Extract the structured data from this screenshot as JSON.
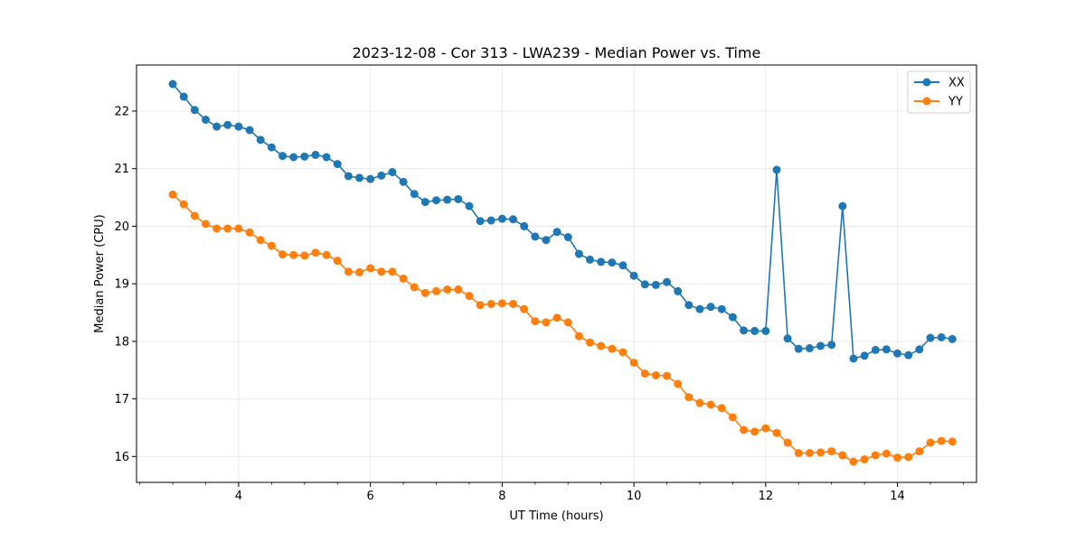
{
  "chart_data": {
    "type": "line",
    "title": "2023-12-08 - Cor 313 - LWA239 - Median Power vs. Time",
    "xlabel": "UT Time (hours)",
    "ylabel": "Median Power (CPU)",
    "xlim": [
      2.45,
      15.2
    ],
    "ylim": [
      15.55,
      22.8
    ],
    "xticks": [
      4,
      6,
      8,
      10,
      12,
      14
    ],
    "yticks": [
      16,
      17,
      18,
      19,
      20,
      21,
      22
    ],
    "grid": true,
    "legend_position": "upper right",
    "x": [
      3.0,
      3.167,
      3.333,
      3.5,
      3.667,
      3.833,
      4.0,
      4.167,
      4.333,
      4.5,
      4.667,
      4.833,
      5.0,
      5.167,
      5.333,
      5.5,
      5.667,
      5.833,
      6.0,
      6.167,
      6.333,
      6.5,
      6.667,
      6.833,
      7.0,
      7.167,
      7.333,
      7.5,
      7.667,
      7.833,
      8.0,
      8.167,
      8.333,
      8.5,
      8.667,
      8.833,
      9.0,
      9.167,
      9.333,
      9.5,
      9.667,
      9.833,
      10.0,
      10.167,
      10.333,
      10.5,
      10.667,
      10.833,
      11.0,
      11.167,
      11.333,
      11.5,
      11.667,
      11.833,
      12.0,
      12.167,
      12.333,
      12.5,
      12.667,
      12.833,
      13.0,
      13.167,
      13.333,
      13.5,
      13.667,
      13.833,
      14.0,
      14.167,
      14.333,
      14.5,
      14.667,
      14.833
    ],
    "series": [
      {
        "name": "XX",
        "color": "#1f77b4",
        "values": [
          22.47,
          22.25,
          22.02,
          21.85,
          21.73,
          21.76,
          21.73,
          21.67,
          21.5,
          21.37,
          21.22,
          21.2,
          21.21,
          21.24,
          21.2,
          21.08,
          20.87,
          20.84,
          20.82,
          20.88,
          20.94,
          20.77,
          20.56,
          20.42,
          20.45,
          20.46,
          20.47,
          20.35,
          20.09,
          20.1,
          20.13,
          20.12,
          20.0,
          19.82,
          19.76,
          19.9,
          19.81,
          19.52,
          19.42,
          19.38,
          19.37,
          19.32,
          19.14,
          18.99,
          18.98,
          19.03,
          18.87,
          18.63,
          18.56,
          18.6,
          18.56,
          18.42,
          18.19,
          18.18,
          18.18,
          20.98,
          18.05,
          17.87,
          17.88,
          17.92,
          17.94,
          20.35,
          17.7,
          17.75,
          17.85,
          17.86,
          17.79,
          17.76,
          17.86,
          18.06,
          18.07,
          18.04
        ]
      },
      {
        "name": "YY",
        "color": "#ff7f0e",
        "values": [
          20.55,
          20.38,
          20.18,
          20.04,
          19.96,
          19.96,
          19.96,
          19.89,
          19.76,
          19.66,
          19.51,
          19.5,
          19.49,
          19.54,
          19.5,
          19.4,
          19.21,
          19.2,
          19.27,
          19.21,
          19.21,
          19.09,
          18.94,
          18.84,
          18.87,
          18.9,
          18.9,
          18.79,
          18.63,
          18.65,
          18.66,
          18.65,
          18.56,
          18.35,
          18.33,
          18.41,
          18.33,
          18.09,
          17.98,
          17.92,
          17.87,
          17.81,
          17.63,
          17.44,
          17.41,
          17.4,
          17.26,
          17.03,
          16.93,
          16.9,
          16.84,
          16.68,
          16.46,
          16.43,
          16.49,
          16.41,
          16.24,
          16.06,
          16.06,
          16.07,
          16.09,
          16.02,
          15.91,
          15.95,
          16.02,
          16.05,
          15.98,
          15.99,
          16.09,
          16.24,
          16.27,
          16.26
        ]
      }
    ]
  }
}
